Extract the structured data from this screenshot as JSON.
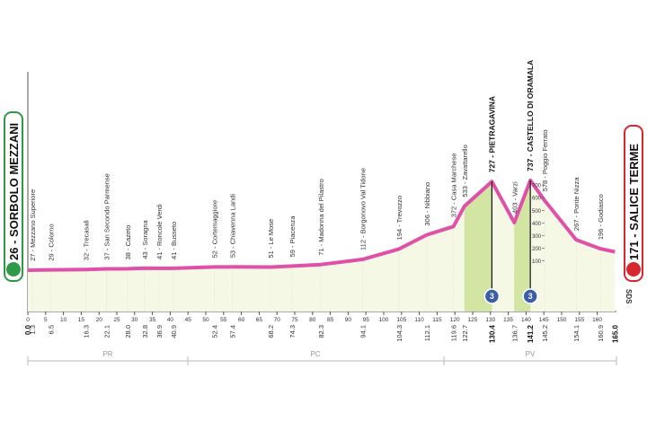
{
  "chart_data": {
    "type": "area",
    "start_label": "26 - SORBOLO MEZZANI",
    "finish_label": "171 - SALICE TERME",
    "x": [
      0,
      1.3,
      6.5,
      16.3,
      22.1,
      28,
      32.8,
      36.9,
      40.9,
      52.4,
      57.4,
      68.2,
      74.3,
      82.3,
      94.1,
      104.3,
      112.1,
      119.6,
      122.7,
      130.4,
      136.7,
      141.2,
      145.2,
      154.1,
      160.9,
      165
    ],
    "values": [
      26,
      27,
      29,
      32,
      37,
      38,
      43,
      41,
      41,
      52,
      53,
      51,
      59,
      71,
      112,
      194,
      306,
      372,
      533,
      727,
      403,
      737,
      578,
      267,
      196,
      171
    ],
    "color": "#e04fa8",
    "fill_color": "#f6f8e6",
    "climb_color": "#d3e5a3",
    "waypoint_labels": [
      "27 - Mezzano Superiore",
      "29 - Colorno",
      "32 - Trecasali",
      "37 - San Secondo Parmense",
      "38 - Cazeto",
      "43 - Soragna",
      "41 - Roncole Verdi",
      "41 - Busseto",
      "52 - Cortemaggiore",
      "53 - Chiavenna Landi",
      "51 - Le Mose",
      "59 - Piacenza",
      "71 - Madonna del Pilastro",
      "112 - Borgonovo Val Tidone",
      "194 - Trevozzo",
      "306 - Nibbiano",
      "372 - Casa Marchese",
      "533 - Zavattarello",
      "727 - PIETRAGAVINA",
      "403 - Varzi",
      "737 - CASTELLO DI ORAMALA",
      "578 - Poggio Ferrato",
      "267 - Ponte Nizza",
      "196 - Godiasco"
    ],
    "distance_labels": [
      {
        "value": 0,
        "label": "0.0"
      },
      1.3,
      6.5,
      16.3,
      22.1,
      {
        "value": 28,
        "label": "28.0"
      },
      32.8,
      36.9,
      40.9,
      52.4,
      57.4,
      68.2,
      74.3,
      82.3,
      94.1,
      104.3,
      112.1,
      119.6,
      122.7,
      130.4,
      136.7,
      141.2,
      145.2,
      154.1,
      160.9,
      {
        "value": 165,
        "label": "165.0"
      }
    ],
    "xlim": [
      0,
      165
    ],
    "xticks": [
      0,
      5,
      10,
      15,
      20,
      25,
      30,
      35,
      40,
      45,
      50,
      55,
      60,
      65,
      70,
      75,
      80,
      85,
      90,
      95,
      100,
      105,
      110,
      115,
      120,
      125,
      130,
      135,
      140,
      145,
      150,
      155,
      160
    ],
    "ylim": [
      -300,
      1900
    ],
    "yticks": [
      100,
      200,
      300,
      400,
      500,
      600,
      700
    ],
    "climbs": [
      {
        "km": 130.4,
        "category": 3
      },
      {
        "km": 141.2,
        "category": 3
      }
    ],
    "regions": [
      "PR",
      "PC",
      "PV"
    ],
    "credit": "SDS"
  }
}
